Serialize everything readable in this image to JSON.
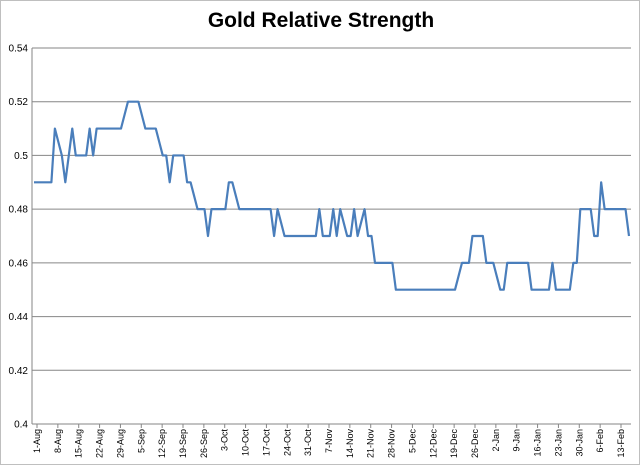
{
  "chart_data": {
    "type": "line",
    "title": "Gold Relative Strength",
    "xlabel": "",
    "ylabel": "",
    "ylim": [
      0.4,
      0.54
    ],
    "yticks": [
      "0.4",
      "0.42",
      "0.44",
      "0.46",
      "0.48",
      "0.5",
      "0.52",
      "0.54"
    ],
    "grid": true,
    "line_color": "#4a7ebb",
    "x_tick_labels": [
      "1-Aug",
      "8-Aug",
      "15-Aug",
      "22-Aug",
      "29-Aug",
      "5-Sep",
      "12-Sep",
      "19-Sep",
      "26-Sep",
      "3-Oct",
      "10-Oct",
      "17-Oct",
      "24-Oct",
      "31-Oct",
      "7-Nov",
      "14-Nov",
      "21-Nov",
      "28-Nov",
      "5-Dec",
      "12-Dec",
      "19-Dec",
      "26-Dec",
      "2-Jan",
      "9-Jan",
      "16-Jan",
      "23-Jan",
      "30-Jan",
      "6-Feb",
      "13-Feb"
    ],
    "series": [
      {
        "values": [
          0.49,
          0.49,
          0.49,
          0.49,
          0.49,
          0.49,
          0.51,
          0.505,
          0.5,
          0.49,
          0.5,
          0.51,
          0.5,
          0.5,
          0.5,
          0.5,
          0.51,
          0.5,
          0.51,
          0.51,
          0.51,
          0.51,
          0.51,
          0.51,
          0.51,
          0.51,
          0.515,
          0.52,
          0.52,
          0.52,
          0.52,
          0.515,
          0.51,
          0.51,
          0.51,
          0.51,
          0.505,
          0.5,
          0.5,
          0.49,
          0.5,
          0.5,
          0.5,
          0.5,
          0.49,
          0.49,
          0.485,
          0.48,
          0.48,
          0.48,
          0.47,
          0.48,
          0.48,
          0.48,
          0.48,
          0.48,
          0.49,
          0.49,
          0.485,
          0.48,
          0.48,
          0.48,
          0.48,
          0.48,
          0.48,
          0.48,
          0.48,
          0.48,
          0.48,
          0.47,
          0.48,
          0.475,
          0.47,
          0.47,
          0.47,
          0.47,
          0.47,
          0.47,
          0.47,
          0.47,
          0.47,
          0.47,
          0.48,
          0.47,
          0.47,
          0.47,
          0.48,
          0.47,
          0.48,
          0.475,
          0.47,
          0.47,
          0.48,
          0.47,
          0.475,
          0.48,
          0.47,
          0.47,
          0.46,
          0.46,
          0.46,
          0.46,
          0.46,
          0.46,
          0.45,
          0.45,
          0.45,
          0.45,
          0.45,
          0.45,
          0.45,
          0.45,
          0.45,
          0.45,
          0.45,
          0.45,
          0.45,
          0.45,
          0.45,
          0.45,
          0.45,
          0.45,
          0.455,
          0.46,
          0.46,
          0.46,
          0.47,
          0.47,
          0.47,
          0.47,
          0.46,
          0.46,
          0.46,
          0.455,
          0.45,
          0.45,
          0.46,
          0.46,
          0.46,
          0.46,
          0.46,
          0.46,
          0.46,
          0.45,
          0.45,
          0.45,
          0.45,
          0.45,
          0.45,
          0.46,
          0.45,
          0.45,
          0.45,
          0.45,
          0.45,
          0.46,
          0.46,
          0.48,
          0.48,
          0.48,
          0.48,
          0.47,
          0.47,
          0.49,
          0.48,
          0.48,
          0.48,
          0.48,
          0.48,
          0.48,
          0.48,
          0.47
        ]
      }
    ]
  }
}
